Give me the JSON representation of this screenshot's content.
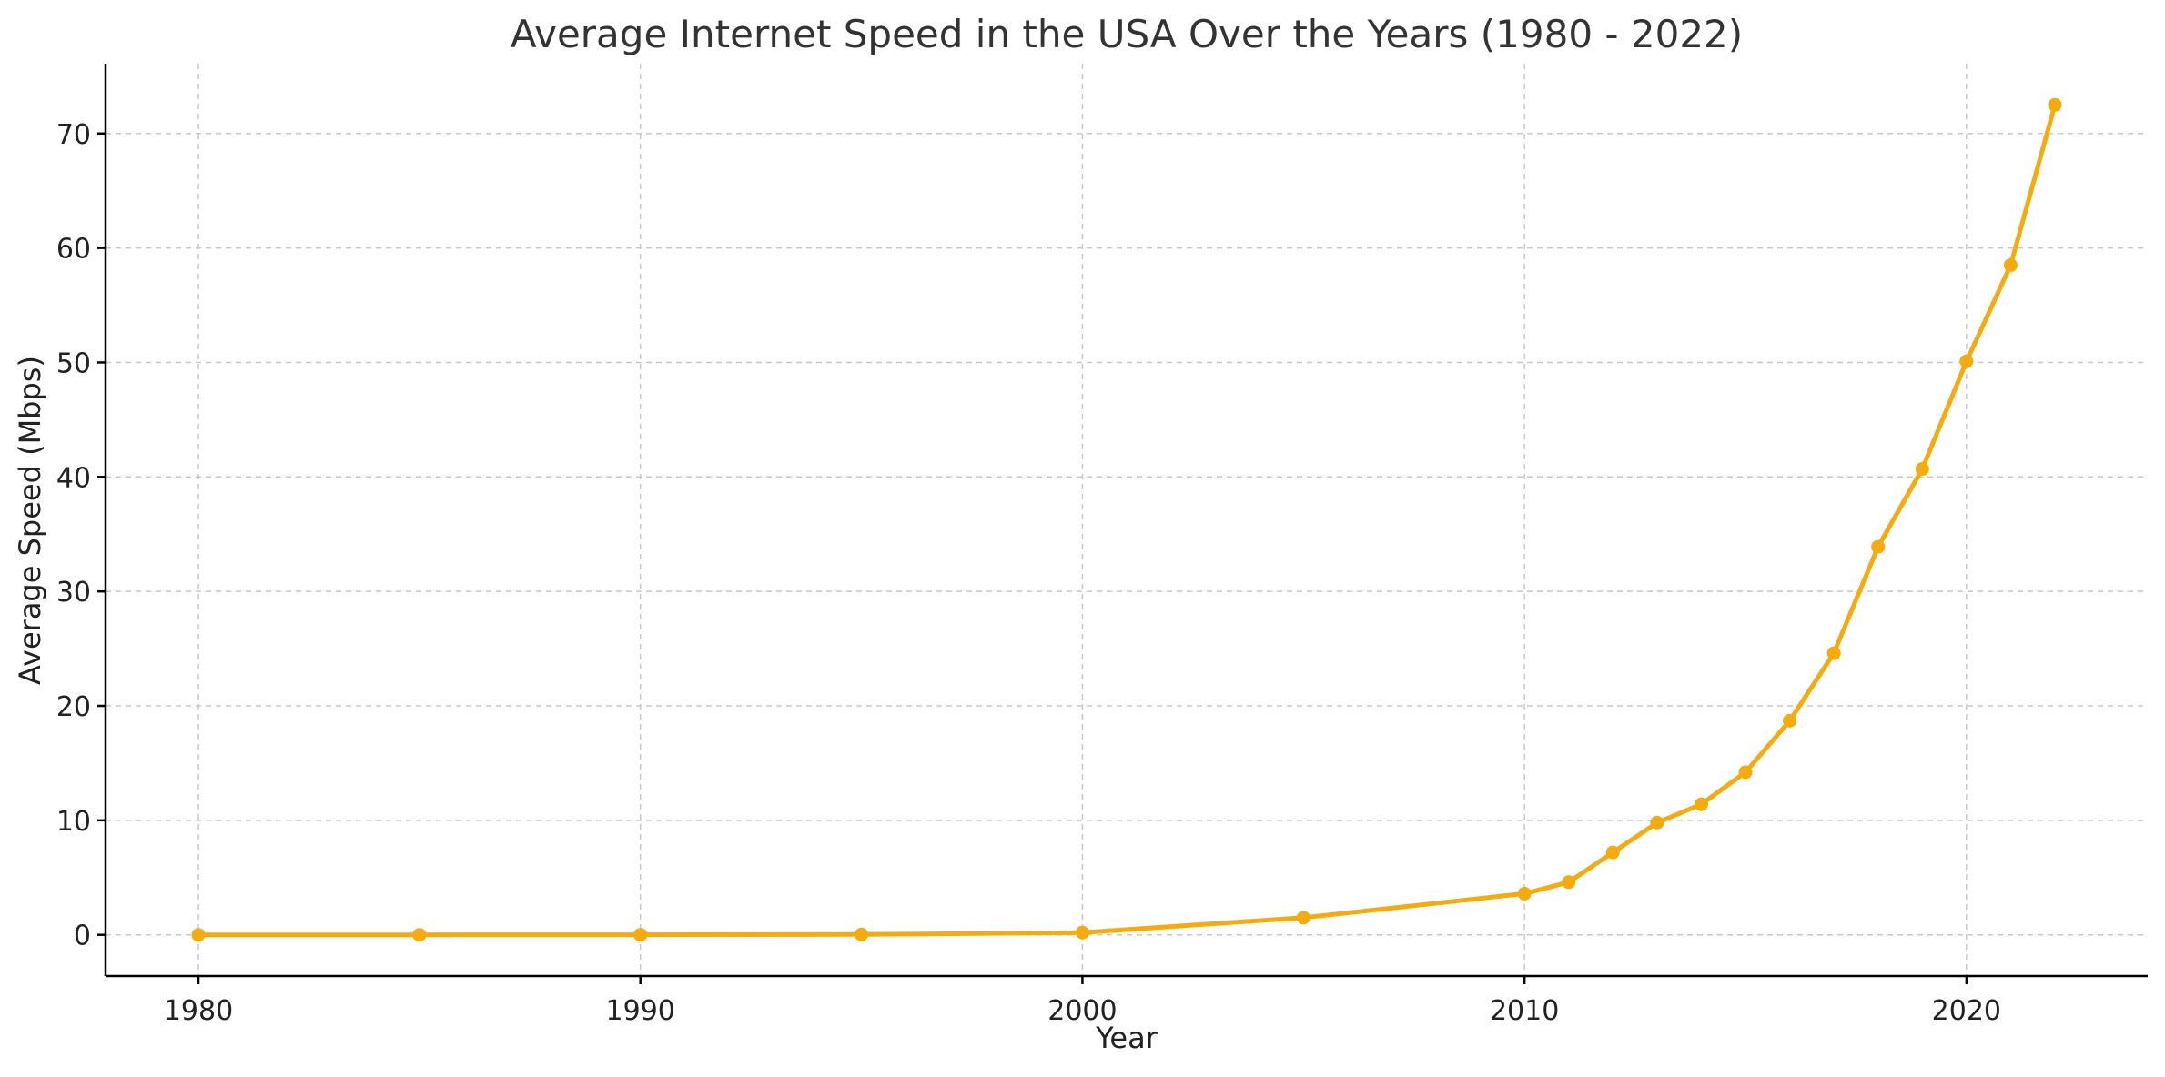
{
  "chart_data": {
    "type": "line",
    "title": "Average Internet Speed in the USA Over the Years (1980 - 2022)",
    "xlabel": "Year",
    "ylabel": "Average Speed (Mbps)",
    "xlim": [
      1977.9,
      2024.1
    ],
    "ylim": [
      -3.6,
      76.1
    ],
    "xticks": [
      1980,
      1990,
      2000,
      2010,
      2020
    ],
    "yticks": [
      0,
      10,
      20,
      30,
      40,
      50,
      60,
      70
    ],
    "grid": true,
    "legend": "none",
    "series": [
      {
        "color": "#f5ab0d",
        "x": [
          1980,
          1985,
          1990,
          1995,
          2000,
          2005,
          2010,
          2011,
          2012,
          2013,
          2014,
          2015,
          2016,
          2017,
          2018,
          2019,
          2020,
          2021,
          2022
        ],
        "y": [
          0.0,
          0.0,
          0.01,
          0.03,
          0.2,
          1.5,
          3.6,
          4.6,
          7.2,
          9.8,
          11.4,
          14.2,
          18.7,
          24.6,
          33.9,
          40.7,
          50.1,
          58.5,
          72.5
        ]
      }
    ]
  }
}
